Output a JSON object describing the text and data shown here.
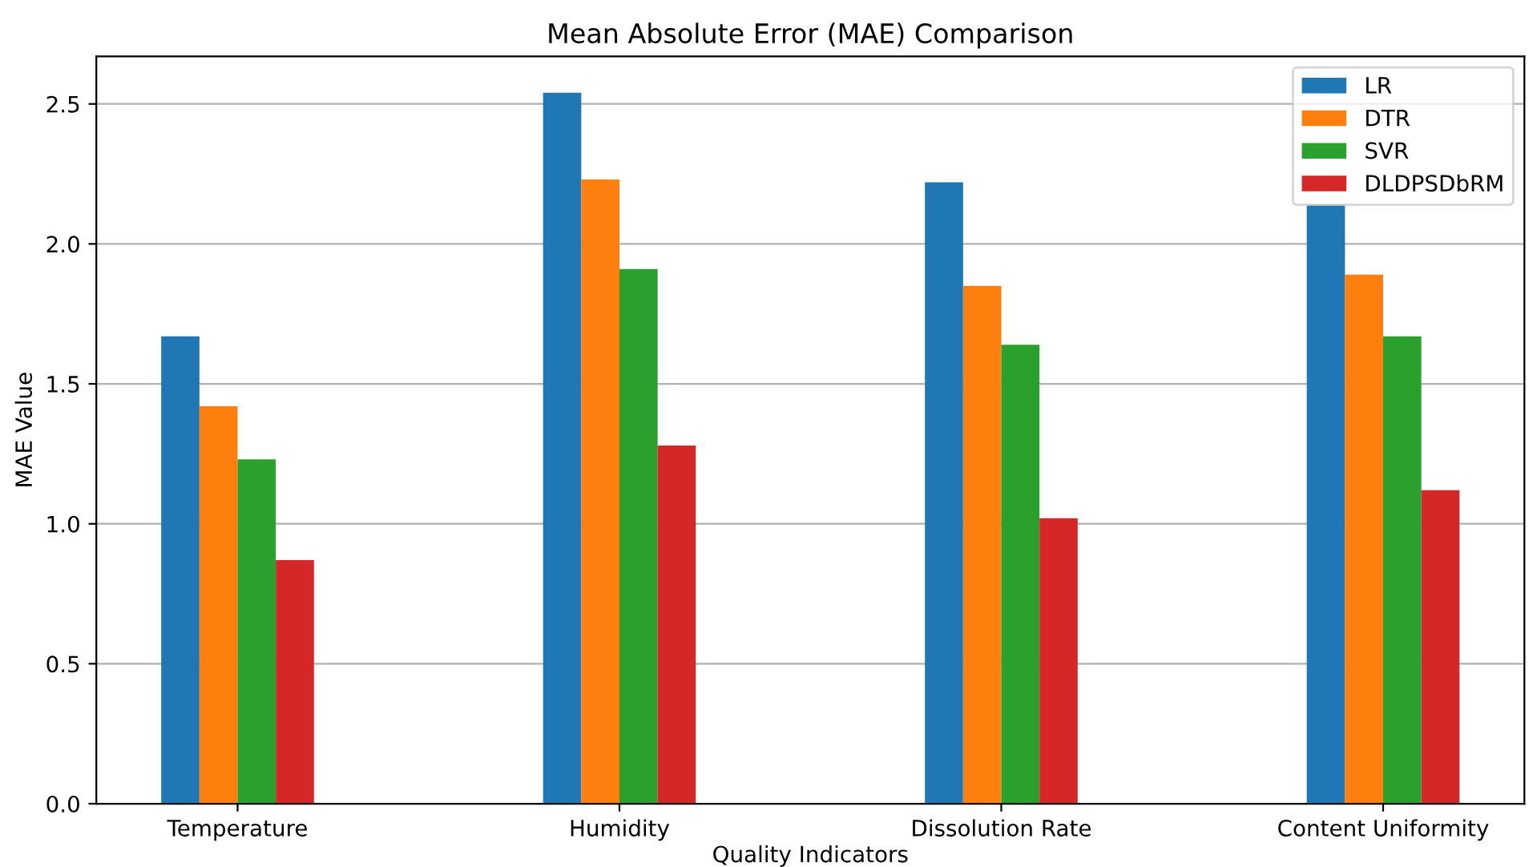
{
  "chart_data": {
    "type": "bar",
    "title": "Mean Absolute Error (MAE) Comparison",
    "xlabel": "Quality Indicators",
    "ylabel": "MAE Value",
    "categories": [
      "Temperature",
      "Humidity",
      "Dissolution Rate",
      "Content Uniformity"
    ],
    "series": [
      {
        "name": "LR",
        "color": "#1f77b4",
        "values": [
          1.67,
          2.54,
          2.22,
          2.14
        ]
      },
      {
        "name": "DTR",
        "color": "#ff7f0e",
        "values": [
          1.42,
          2.23,
          1.85,
          1.89
        ]
      },
      {
        "name": "SVR",
        "color": "#2ca02c",
        "values": [
          1.23,
          1.91,
          1.64,
          1.67
        ]
      },
      {
        "name": "DLDPSDbRM",
        "color": "#d62728",
        "values": [
          0.87,
          1.28,
          1.02,
          1.12
        ]
      }
    ],
    "ylim": [
      0,
      2.67
    ],
    "yticks": [
      {
        "value": 0,
        "label": "0.0"
      },
      {
        "value": 0.5,
        "label": "0.5"
      },
      {
        "value": 1,
        "label": "1.0"
      },
      {
        "value": 1.5,
        "label": "1.5"
      },
      {
        "value": 2,
        "label": "2.0"
      },
      {
        "value": 2.5,
        "label": "2.5"
      }
    ],
    "grid": "y",
    "legend": "top right"
  }
}
